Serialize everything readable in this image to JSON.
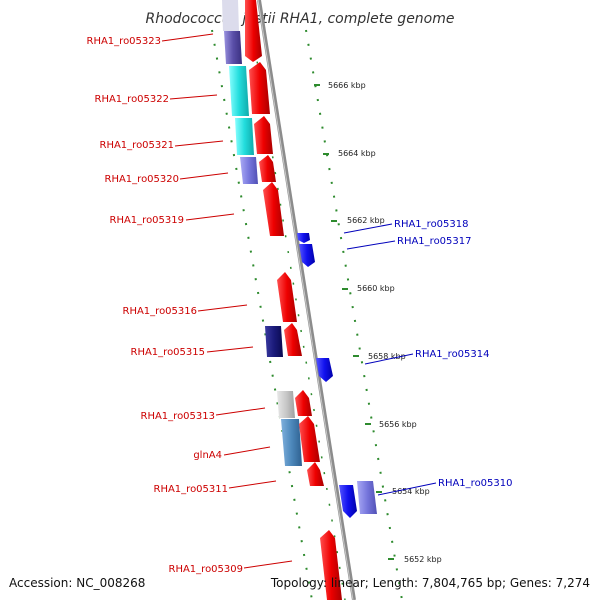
{
  "title": "Rhodococcus jostii RHA1, complete genome",
  "footer": {
    "accession": "Accession: NC_008268",
    "summary": "Topology: linear; Length: 7,804,765 bp; Genes: 7,274"
  },
  "colors": {
    "backbone": "#8c8c8c",
    "tick_dot": "#2e8b2e",
    "forward_label": "#cc0000",
    "reverse_label": "#0000bb"
  },
  "kbp_labels": [
    "5666 kbp",
    "5664 kbp",
    "5662 kbp",
    "5660 kbp",
    "5658 kbp",
    "5656 kbp",
    "5654 kbp",
    "5652 kbp"
  ],
  "forward_genes": [
    {
      "label": "RHA1_ro05323",
      "color": "#ee0000",
      "partner_color": "#5a4fa8"
    },
    {
      "label": "RHA1_ro05322",
      "color": "#ee0000",
      "partner_color": "#22dddd"
    },
    {
      "label": "RHA1_ro05321",
      "color": "#ee0000",
      "partner_color": "#22dddd"
    },
    {
      "label": "RHA1_ro05320",
      "color": "#ee0000",
      "partner_color": "#7777dd"
    },
    {
      "label": "RHA1_ro05319",
      "color": "#ee0000"
    },
    {
      "label": "RHA1_ro05316",
      "color": "#ee0000"
    },
    {
      "label": "RHA1_ro05315",
      "color": "#ee0000",
      "partner_color": "#1a1a7a"
    },
    {
      "label": "RHA1_ro05313",
      "color": "#ee0000",
      "partner_color": "#c8c8c8"
    },
    {
      "label": "glnA4",
      "color": "#ee0000",
      "partner_color": "#4d88bb"
    },
    {
      "label": "RHA1_ro05311",
      "color": "#ee0000"
    },
    {
      "label": "RHA1_ro05309",
      "color": "#ee0000"
    }
  ],
  "reverse_genes": [
    {
      "label": "RHA1_ro05318",
      "color": "#1111ee"
    },
    {
      "label": "RHA1_ro05317",
      "color": "#1111ee"
    },
    {
      "label": "RHA1_ro05314",
      "color": "#1111ee"
    },
    {
      "label": "RHA1_ro05310",
      "color": "#1111ee",
      "partner_color": "#7777dd"
    }
  ]
}
